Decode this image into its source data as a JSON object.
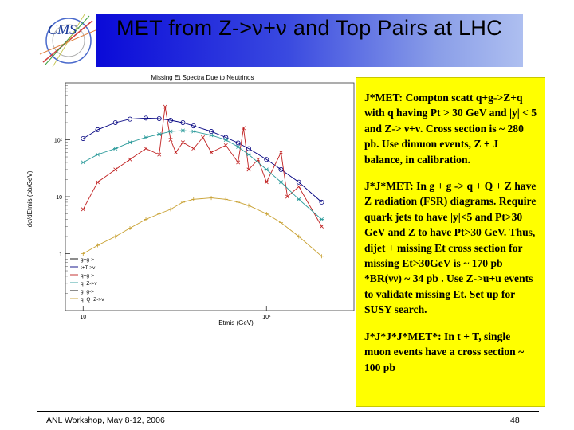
{
  "slide": {
    "title": "MET from Z->ν+ν and Top Pairs at LHC",
    "logo_text": "CMS",
    "paragraphs": [
      "J*MET: Compton scatt q+g->Z+q with q having Pt > 30 GeV and |y| < 5 and Z-> ν+ν. Cross section is ~ 280 pb. Use dimuon events, Z + J balance, in calibration.",
      "J*J*MET: In g + g -> q + Q + Z have Z radiation (FSR) diagrams. Require quark jets to have |y|<5 and Pt>30 GeV and Z to have Pt>30 GeV. Thus, dijet + missing Et cross section for missing Et>30GeV is ~ 170 pb *BR(νν) ~ 34 pb . Use Z->u+u events to validate missing Et. Set up for SUSY search.",
      "J*J*J*J*MET*: In t + T, single muon events have a cross section ~ 100 pb"
    ],
    "footer_left": "ANL Workshop, May 8-12, 2006",
    "page_number": "48"
  },
  "colors": {
    "title_gradient_start": "#0a0ad8",
    "title_gradient_end": "#aebff0",
    "text_box_background": "#ffff00"
  },
  "chart_data": {
    "type": "line",
    "title": "Missing Et Spectra Due to Neutrinos",
    "xlabel": "Etmis (GeV)",
    "ylabel": "dσ/dEtmis (pb/GeV)",
    "x_scale": "log",
    "y_scale": "log",
    "x_ticks": [
      "10",
      "10²"
    ],
    "y_ticks": [
      "10",
      "10²",
      "1"
    ],
    "x_range": [
      8,
      300
    ],
    "y_range": [
      0.1,
      1000
    ],
    "legend": [
      "g+g->",
      "t+T->v",
      "q+g->",
      "q+Z->v",
      "g+g->",
      "q+Q+Z->v"
    ],
    "legend_position": "bottom-left",
    "series": [
      {
        "name": "t+T->v",
        "color": "#000080",
        "x": [
          10,
          12,
          15,
          18,
          22,
          26,
          30,
          35,
          40,
          50,
          60,
          70,
          80,
          100,
          120,
          150,
          200
        ],
        "values": [
          105,
          150,
          200,
          230,
          240,
          235,
          220,
          200,
          175,
          140,
          110,
          88,
          70,
          45,
          30,
          18,
          8
        ]
      },
      {
        "name": "q+g->",
        "color": "#c02020",
        "x": [
          10,
          12,
          15,
          18,
          22,
          26,
          28,
          30,
          32,
          35,
          40,
          45,
          50,
          60,
          70,
          75,
          80,
          90,
          100,
          120,
          130,
          150,
          200
        ],
        "values": [
          6,
          18,
          30,
          45,
          70,
          55,
          380,
          100,
          60,
          90,
          70,
          110,
          60,
          80,
          40,
          160,
          30,
          45,
          18,
          60,
          10,
          15,
          3
        ]
      },
      {
        "name": "q+Z->v",
        "color": "#2a9a9a",
        "x": [
          10,
          12,
          15,
          18,
          22,
          26,
          30,
          35,
          40,
          50,
          60,
          70,
          80,
          100,
          120,
          150,
          200
        ],
        "values": [
          40,
          55,
          70,
          90,
          110,
          125,
          140,
          145,
          140,
          120,
          100,
          75,
          55,
          30,
          18,
          9,
          4
        ]
      },
      {
        "name": "q+Q+Z->v",
        "color": "#c8a030",
        "x": [
          10,
          12,
          15,
          18,
          22,
          26,
          30,
          35,
          40,
          50,
          60,
          70,
          80,
          100,
          120,
          150,
          200
        ],
        "values": [
          1,
          1.4,
          2,
          2.8,
          4,
          5,
          6,
          8,
          9,
          9.5,
          9,
          8,
          7,
          5,
          3.5,
          2,
          0.9
        ]
      }
    ]
  }
}
